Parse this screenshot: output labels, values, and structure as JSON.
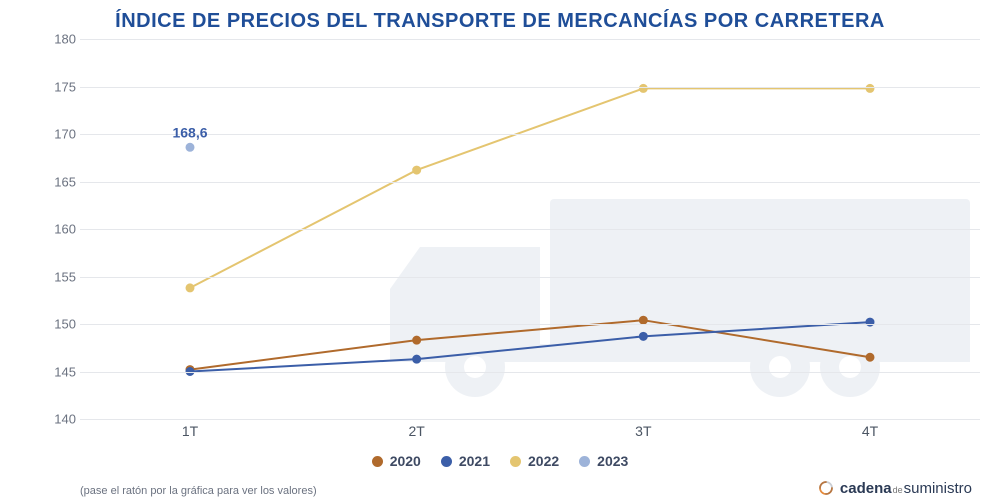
{
  "title": "ÍNDICE DE PRECIOS DEL TRANSPORTE DE MERCANCÍAS POR CARRETERA",
  "title_color": "#1f4e98",
  "title_fontsize": 20,
  "chart": {
    "type": "line",
    "background_color": "#ffffff",
    "grid_color": "#e5e7eb",
    "axis_label_color": "#6b7280",
    "axis_label_fontsize": 13,
    "categories": [
      "1T",
      "2T",
      "3T",
      "4T"
    ],
    "ylim": [
      140,
      180
    ],
    "ytick_step": 5,
    "yticks": [
      140,
      145,
      150,
      155,
      160,
      165,
      170,
      175,
      180
    ],
    "line_width": 2,
    "marker_radius": 4,
    "series": [
      {
        "name": "2020",
        "color": "#b06a2c",
        "values": [
          145.2,
          148.3,
          150.4,
          146.5
        ]
      },
      {
        "name": "2021",
        "color": "#3b5ea8",
        "values": [
          145.0,
          146.3,
          148.7,
          150.2
        ]
      },
      {
        "name": "2022",
        "color": "#e4c570",
        "values": [
          153.8,
          166.2,
          174.8,
          174.8
        ]
      },
      {
        "name": "2023",
        "color": "#9db3d9",
        "values": [
          168.6
        ],
        "point_label": "168,6",
        "point_label_color": "#3b5ea8"
      }
    ],
    "truck_watermark_color": "#eef1f5"
  },
  "legend": {
    "fontsize": 14,
    "label_color": "#3e4a63"
  },
  "footer_note": "(pase el ratón por la gráfica para ver los valores)",
  "brand": {
    "icon_color": "#e58a3c",
    "word1": "cadena",
    "small": "de",
    "word2": "suministro",
    "text_color": "#2b3a55"
  }
}
